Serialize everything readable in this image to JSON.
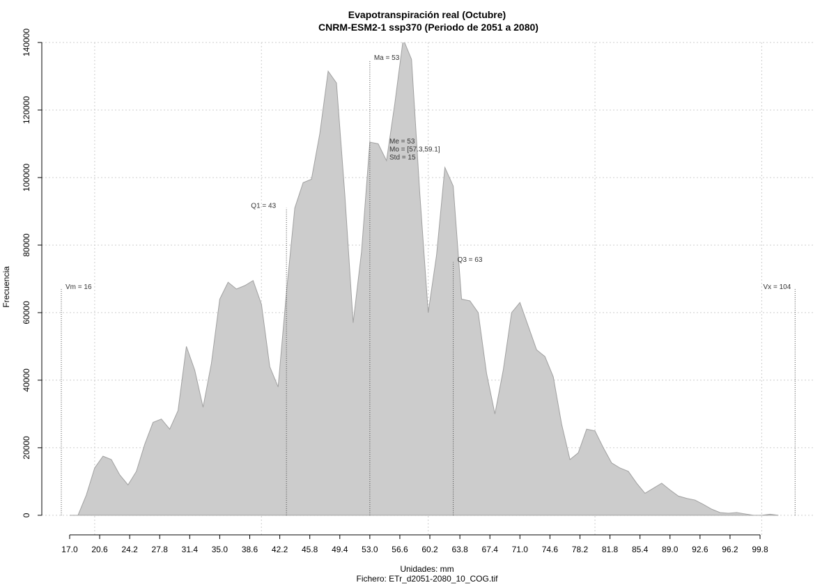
{
  "chart_data": {
    "type": "area",
    "title": "Evapotranspiración real (Octubre)",
    "subtitle": "CNRM-ESM2-1 ssp370 (Periodo de 2051 a 2080)",
    "xlabel": "Unidades: mm",
    "caption": "Fichero: ETr_d2051-2080_10_COG.tif",
    "ylabel": "Frecuencia",
    "color": "#cccccc",
    "x": [
      17,
      18,
      19,
      20,
      21,
      22,
      23,
      24,
      25,
      26,
      27,
      28,
      29,
      30,
      31,
      32,
      33,
      34,
      35,
      36,
      37,
      38,
      39,
      40,
      41,
      42,
      43,
      44,
      45,
      46,
      47,
      48,
      49,
      50,
      51,
      52,
      53,
      54,
      55,
      56,
      57,
      58,
      59,
      60,
      61,
      62,
      63,
      64,
      65,
      66,
      67,
      68,
      69,
      70,
      71,
      72,
      73,
      74,
      75,
      76,
      77,
      78,
      79,
      80,
      81,
      82,
      83,
      84,
      85,
      86,
      87,
      88,
      89,
      90,
      91,
      92,
      93,
      94,
      95,
      96,
      97,
      98,
      99,
      100,
      101,
      102
    ],
    "values": [
      0,
      0,
      6000,
      14000,
      17500,
      16500,
      12000,
      9000,
      13000,
      21000,
      27500,
      28500,
      25500,
      31000,
      50000,
      43000,
      32000,
      45000,
      64000,
      69000,
      67000,
      68000,
      69500,
      62500,
      44000,
      38000,
      66000,
      91000,
      98500,
      99500,
      113000,
      131500,
      128000,
      95000,
      57000,
      78000,
      110500,
      110000,
      105000,
      122000,
      141000,
      135000,
      95000,
      60000,
      77000,
      103000,
      97500,
      64000,
      63500,
      60000,
      42000,
      30000,
      43000,
      60000,
      63000,
      56000,
      49000,
      47000,
      41000,
      27000,
      16500,
      18500,
      25500,
      25000,
      20000,
      15500,
      14000,
      13000,
      9500,
      6500,
      8000,
      9500,
      7500,
      5700,
      5000,
      4500,
      3200,
      1800,
      800,
      600,
      800,
      400,
      0,
      0,
      300,
      0
    ],
    "xlim": [
      13.66,
      106.4
    ],
    "ylim": [
      -5800,
      140000
    ],
    "xticks": [
      {
        "value": 17,
        "label": "17.0"
      },
      20.6,
      24.2,
      27.8,
      31.4,
      {
        "value": 35,
        "label": "35.0"
      },
      38.6,
      42.2,
      45.8,
      49.4,
      {
        "value": 53,
        "label": "53.0"
      },
      56.6,
      60.2,
      63.8,
      67.4,
      {
        "value": 71,
        "label": "71.0"
      },
      74.6,
      78.2,
      81.8,
      85.4,
      {
        "value": 89,
        "label": "89.0"
      },
      92.6,
      96.2,
      99.8
    ],
    "yticks": [
      0,
      20000,
      40000,
      60000,
      80000,
      100000,
      120000,
      140000
    ],
    "xgrid": [
      20,
      40,
      60,
      80,
      100
    ],
    "grid": true,
    "annotations": [
      {
        "text": "Vm = 16",
        "x": 16,
        "y": 67000
      },
      {
        "text": "Q1 = 43",
        "x": 43,
        "y": 91000
      },
      {
        "text": "Ma = 53",
        "x": 53,
        "y": 134800
      },
      {
        "text": "Q3 = 63",
        "x": 63,
        "y": 75000
      },
      {
        "text": "Vx = 104",
        "x": 104,
        "y": 67000
      }
    ],
    "stats_labels": [
      "Me = 53",
      "Mo = [57.3,59.1]",
      "Std = 15"
    ]
  }
}
